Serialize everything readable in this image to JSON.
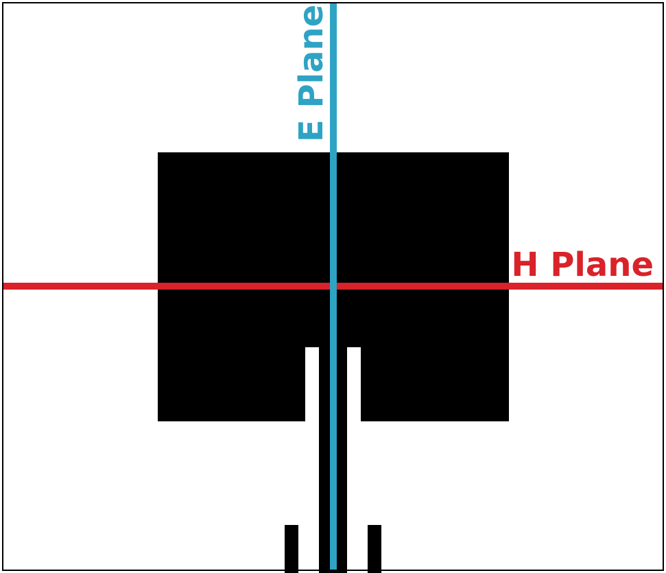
{
  "labels": {
    "e_plane": "E Plane",
    "h_plane": "H Plane"
  },
  "colors": {
    "background": "#ffffff",
    "frame": "#000000",
    "antenna": "#000000",
    "e_plane": "#2fa3c4",
    "h_plane": "#d9222a"
  }
}
